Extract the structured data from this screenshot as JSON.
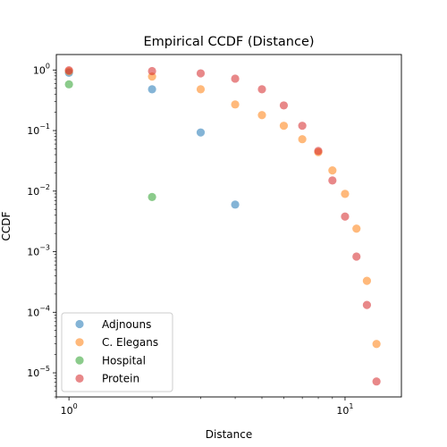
{
  "chart_data": {
    "type": "scatter",
    "title": "Empirical CCDF (Distance)",
    "xlabel": "Distance",
    "ylabel": "CCDF",
    "xscale": "log",
    "yscale": "log",
    "xlim": [
      0.9,
      16
    ],
    "ylim": [
      4e-06,
      1.8
    ],
    "grid": false,
    "legend_position": "lower-left",
    "x_ticks": [
      {
        "value": 1,
        "base": "10",
        "exp": "0"
      },
      {
        "value": 10,
        "base": "10",
        "exp": "1"
      }
    ],
    "y_ticks": [
      {
        "value": 1,
        "base": "10",
        "exp": "0"
      },
      {
        "value": 0.1,
        "base": "10",
        "exp": "−1"
      },
      {
        "value": 0.01,
        "base": "10",
        "exp": "−2"
      },
      {
        "value": 0.001,
        "base": "10",
        "exp": "−3"
      },
      {
        "value": 0.0001,
        "base": "10",
        "exp": "−4"
      },
      {
        "value": 1e-05,
        "base": "10",
        "exp": "−5"
      }
    ],
    "series": [
      {
        "name": "Adjnouns",
        "color": "#1f77b4",
        "points": [
          [
            1,
            0.9
          ],
          [
            2,
            0.48
          ],
          [
            3,
            0.093
          ],
          [
            4,
            0.006
          ]
        ]
      },
      {
        "name": "C. Elegans",
        "color": "#ff7f0e",
        "points": [
          [
            1,
            0.95
          ],
          [
            2,
            0.78
          ],
          [
            3,
            0.48
          ],
          [
            4,
            0.27
          ],
          [
            5,
            0.18
          ],
          [
            6,
            0.12
          ],
          [
            7,
            0.072
          ],
          [
            8,
            0.044
          ],
          [
            9,
            0.022
          ],
          [
            10,
            0.009
          ],
          [
            11,
            0.0024
          ],
          [
            12,
            0.00033
          ],
          [
            13,
            3e-05
          ]
        ]
      },
      {
        "name": "Hospital",
        "color": "#2ca02c",
        "points": [
          [
            1,
            0.58
          ],
          [
            2,
            0.008
          ]
        ]
      },
      {
        "name": "Protein",
        "color": "#d62728",
        "points": [
          [
            1,
            0.99
          ],
          [
            2,
            0.96
          ],
          [
            3,
            0.88
          ],
          [
            4,
            0.72
          ],
          [
            5,
            0.48
          ],
          [
            6,
            0.26
          ],
          [
            7,
            0.12
          ],
          [
            8,
            0.046
          ],
          [
            9,
            0.015
          ],
          [
            10,
            0.0038
          ],
          [
            11,
            0.00083
          ],
          [
            12,
            0.000132
          ],
          [
            13,
            7.2e-06
          ]
        ]
      }
    ]
  }
}
